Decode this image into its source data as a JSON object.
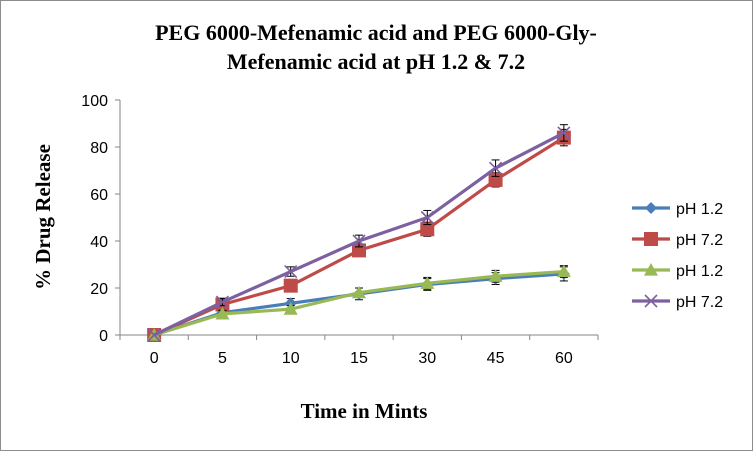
{
  "chart_data": {
    "type": "line",
    "title_lines": [
      "PEG 6000-Mefenamic acid and PEG 6000-Gly-",
      "Mefenamic acid at pH 1.2 & 7.2"
    ],
    "xlabel": "Time in Mints",
    "ylabel": "% Drug Release",
    "categories": [
      "0",
      "5",
      "10",
      "15",
      "30",
      "45",
      "60"
    ],
    "ylim": [
      0,
      100
    ],
    "yticks": [
      0,
      20,
      40,
      60,
      80,
      100
    ],
    "grid": false,
    "legend_position": "right",
    "series": [
      {
        "name": "pH 1.2",
        "color": "#4a7ebb",
        "marker": "diamond",
        "values": [
          0,
          9.5,
          13.5,
          17.5,
          21.5,
          24,
          26
        ],
        "errors": [
          0,
          1.5,
          2,
          2.5,
          2.5,
          2.5,
          3
        ]
      },
      {
        "name": "pH 7.2",
        "color": "#be4b48",
        "marker": "square",
        "values": [
          0,
          13,
          21,
          36,
          45,
          66,
          84
        ],
        "errors": [
          0,
          1.5,
          2,
          2.5,
          3,
          3,
          3.5
        ]
      },
      {
        "name": "pH 1.2",
        "color": "#98b954",
        "marker": "triangle",
        "values": [
          0,
          9,
          11,
          18,
          22,
          25,
          27
        ],
        "errors": [
          0,
          1.5,
          1.5,
          2,
          2.5,
          2.5,
          2.5
        ]
      },
      {
        "name": "pH 7.2",
        "color": "#7d60a0",
        "marker": "x",
        "values": [
          0,
          14,
          27,
          40,
          50,
          71,
          86
        ],
        "errors": [
          0,
          1.5,
          2,
          2.5,
          3,
          3.5,
          3.5
        ]
      }
    ]
  }
}
